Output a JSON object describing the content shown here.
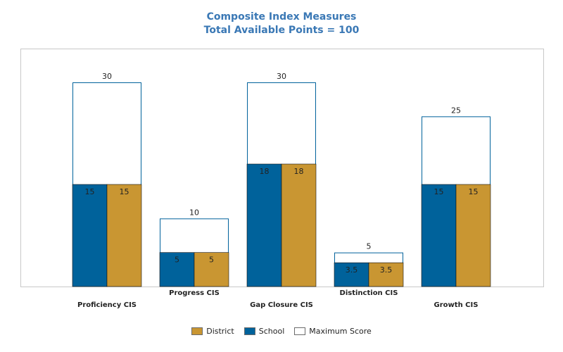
{
  "title": "Composite Index Measures",
  "subtitle": "Total Available Points = 100",
  "colors": {
    "school": "#00629b",
    "district": "#c99632",
    "maximum": "#ffffff"
  },
  "chart_data": {
    "type": "bar",
    "title": "Composite Index Measures",
    "subtitle": "Total Available Points = 100",
    "categories": [
      "Proficiency CIS",
      "Progress CIS",
      "Gap Closure CIS",
      "Distinction CIS",
      "Growth CIS"
    ],
    "series": [
      {
        "name": "Maximum Score",
        "values": [
          30,
          10,
          30,
          5,
          25
        ]
      },
      {
        "name": "School",
        "values": [
          15,
          5,
          18,
          3.5,
          15
        ]
      },
      {
        "name": "District",
        "values": [
          15,
          5,
          18,
          3.5,
          15
        ]
      }
    ],
    "max_labels": [
      "30",
      "10",
      "30",
      "5",
      "25"
    ],
    "school_labels": [
      "15",
      "5",
      "18",
      "3.5",
      "15"
    ],
    "district_labels": [
      "15",
      "5",
      "18",
      "3.5",
      "15"
    ],
    "ylim": [
      0,
      30
    ],
    "grid": false,
    "legend": {
      "position": "bottom",
      "items": [
        "District",
        "School",
        "Maximum Score"
      ]
    }
  }
}
